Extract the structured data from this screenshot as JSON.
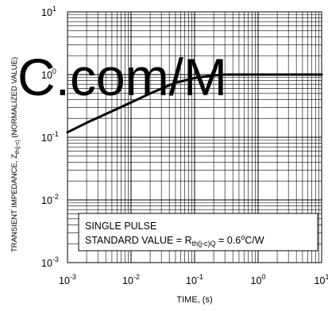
{
  "watermark": "C.com/M",
  "chart_data": {
    "type": "line",
    "title": "",
    "xlabel": "TIME, (s)",
    "ylabel_main": "TRANSIENT IMPEDANCE, Z",
    "ylabel_sub": "th(j-c)",
    "ylabel_tail": " (NORMALIZED VALUE)",
    "x_scale": "log",
    "y_scale": "log",
    "xlim": [
      0.001,
      10
    ],
    "ylim": [
      0.001,
      10
    ],
    "x_ticks": [
      {
        "base": "10",
        "exp": "-3"
      },
      {
        "base": "10",
        "exp": "-2"
      },
      {
        "base": "10",
        "exp": "-1"
      },
      {
        "base": "10",
        "exp": "0"
      },
      {
        "base": "10",
        "exp": "1"
      }
    ],
    "y_ticks": [
      {
        "base": "10",
        "exp": "1"
      },
      {
        "base": "10",
        "exp": "0"
      },
      {
        "base": "10",
        "exp": "-1"
      },
      {
        "base": "10",
        "exp": "-2"
      },
      {
        "base": "10",
        "exp": "-3"
      }
    ],
    "grid": true,
    "series": [
      {
        "x": [
          0.001,
          0.002,
          0.005,
          0.01,
          0.02,
          0.05,
          0.1,
          0.2,
          0.3,
          0.5,
          1,
          3,
          10
        ],
        "y": [
          0.12,
          0.17,
          0.26,
          0.36,
          0.5,
          0.74,
          0.88,
          0.97,
          1.0,
          1.0,
          1.0,
          1.0,
          1.0
        ]
      }
    ],
    "annotation": {
      "line1": "SINGLE PULSE",
      "line2_prefix": "STANDARD VALUE = R",
      "line2_sub": "th(j-c)Q",
      "line2_mid": " = 0.6",
      "line2_sup": "o",
      "line2_unit": "C/W"
    }
  }
}
